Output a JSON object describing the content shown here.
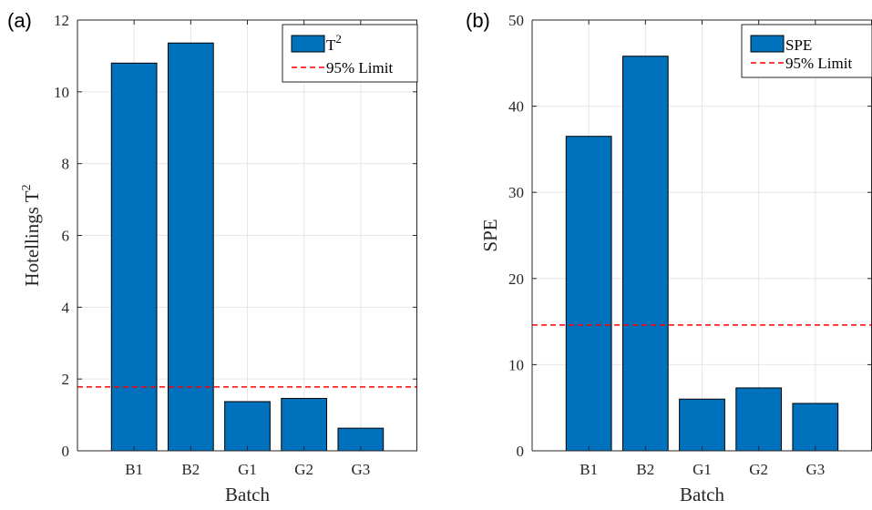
{
  "figure": {
    "panel_a_tag": "(a)",
    "panel_b_tag": "(b)"
  },
  "colors": {
    "bar": "#0072BD",
    "limit": "#FF0000",
    "grid": "#E6E6E6",
    "axis": "#262626"
  },
  "chart_data": [
    {
      "type": "bar",
      "panel": "(a)",
      "categories": [
        "B1",
        "B2",
        "G1",
        "G2",
        "G3"
      ],
      "values": [
        10.8,
        11.36,
        1.37,
        1.46,
        0.63
      ],
      "limit_value": 1.78,
      "xlabel": "Batch",
      "ylabel_main": "Hotellings T",
      "ylabel_sup": "2",
      "ylim": [
        0,
        12
      ],
      "yticks": [
        0,
        2,
        4,
        6,
        8,
        10,
        12
      ],
      "grid": true,
      "legend": {
        "placement": "top-right",
        "bar_label_main": "T",
        "bar_label_sup": "2",
        "limit_label": "95% Limit"
      }
    },
    {
      "type": "bar",
      "panel": "(b)",
      "categories": [
        "B1",
        "B2",
        "G1",
        "G2",
        "G3"
      ],
      "values": [
        36.5,
        45.8,
        6.0,
        7.3,
        5.5
      ],
      "limit_value": 14.6,
      "xlabel": "Batch",
      "ylabel_main": "SPE",
      "ylabel_sup": "",
      "ylim": [
        0,
        50
      ],
      "yticks": [
        0,
        10,
        20,
        30,
        40,
        50
      ],
      "grid": true,
      "legend": {
        "placement": "top-right",
        "bar_label_main": "SPE",
        "bar_label_sup": "",
        "limit_label": "95% Limit"
      }
    }
  ]
}
